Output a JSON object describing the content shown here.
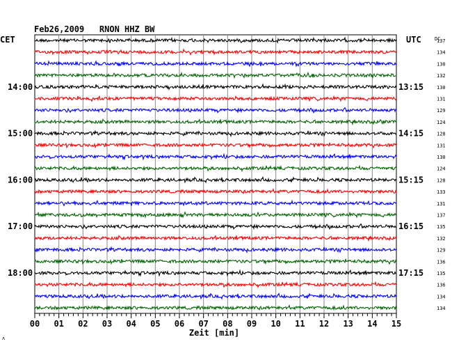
{
  "chart_data": {
    "type": "line",
    "title": "Feb26,2009   RNON HHZ BW",
    "left_zone_label": "CET",
    "right_zone_label": "UTC",
    "dc_label": "DC",
    "xlabel": "Zeit [min]",
    "x_ticks": [
      "00",
      "01",
      "02",
      "03",
      "04",
      "05",
      "06",
      "07",
      "08",
      "09",
      "10",
      "11",
      "12",
      "13",
      "14",
      "15"
    ],
    "xlim": [
      0,
      15
    ],
    "grid": true,
    "left_hour_labels": [
      {
        "trace": 4,
        "label": "14:00"
      },
      {
        "trace": 8,
        "label": "15:00"
      },
      {
        "trace": 12,
        "label": "16:00"
      },
      {
        "trace": 16,
        "label": "17:00"
      },
      {
        "trace": 20,
        "label": "18:00"
      }
    ],
    "right_hour_labels": [
      {
        "trace": 4,
        "label": "13:15"
      },
      {
        "trace": 8,
        "label": "14:15"
      },
      {
        "trace": 12,
        "label": "15:15"
      },
      {
        "trace": 16,
        "label": "16:15"
      },
      {
        "trace": 20,
        "label": "17:15"
      }
    ],
    "trace_colors": [
      "#000000",
      "#ff0000",
      "#0000ff",
      "#006400"
    ],
    "dc_values": [
      "137",
      "134",
      "130",
      "132",
      "130",
      "131",
      "129",
      "124",
      "128",
      "131",
      "130",
      "124",
      "128",
      "133",
      "131",
      "137",
      "135",
      "132",
      "129",
      "136",
      "135",
      "136",
      "134",
      "134"
    ],
    "corner_mark": "ʌ"
  }
}
